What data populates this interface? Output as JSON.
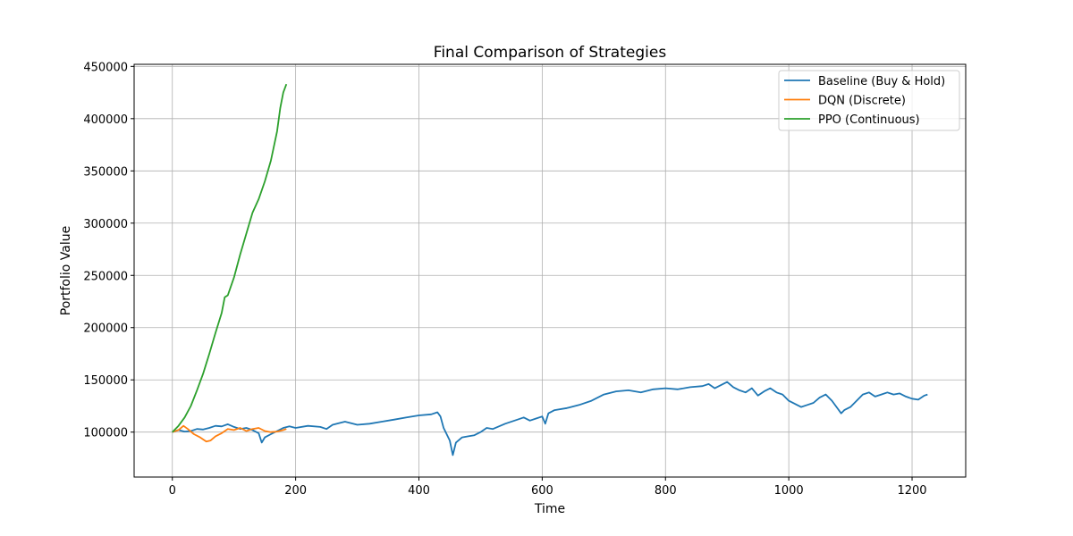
{
  "chart_data": {
    "type": "line",
    "title": "Final Comparison of Strategies",
    "xlabel": "Time",
    "ylabel": "Portfolio Value",
    "xlim": [
      -62,
      1287
    ],
    "ylim": [
      57000,
      452000
    ],
    "xticks": [
      0,
      200,
      400,
      600,
      800,
      1000,
      1200
    ],
    "yticks": [
      100000,
      150000,
      200000,
      250000,
      300000,
      350000,
      400000,
      450000
    ],
    "xtick_labels": [
      "0",
      "200",
      "400",
      "600",
      "800",
      "1000",
      "1200"
    ],
    "ytick_labels": [
      "100000",
      "150000",
      "200000",
      "250000",
      "300000",
      "350000",
      "400000",
      "450000"
    ],
    "grid": true,
    "legend_position": "top-right",
    "series": [
      {
        "name": "Baseline (Buy & Hold)",
        "color": "#1f77b4",
        "points": [
          [
            0,
            100000
          ],
          [
            10,
            102000
          ],
          [
            20,
            100500
          ],
          [
            30,
            101000
          ],
          [
            40,
            103000
          ],
          [
            50,
            102500
          ],
          [
            60,
            104000
          ],
          [
            70,
            106000
          ],
          [
            80,
            105500
          ],
          [
            90,
            107500
          ],
          [
            100,
            105000
          ],
          [
            110,
            103000
          ],
          [
            120,
            104000
          ],
          [
            130,
            102000
          ],
          [
            140,
            99000
          ],
          [
            145,
            90000
          ],
          [
            150,
            95000
          ],
          [
            160,
            98000
          ],
          [
            170,
            101000
          ],
          [
            180,
            104000
          ],
          [
            190,
            105500
          ],
          [
            200,
            104000
          ],
          [
            220,
            106000
          ],
          [
            240,
            105000
          ],
          [
            250,
            103000
          ],
          [
            260,
            107000
          ],
          [
            280,
            110000
          ],
          [
            300,
            107000
          ],
          [
            320,
            108000
          ],
          [
            340,
            110000
          ],
          [
            360,
            112000
          ],
          [
            380,
            114000
          ],
          [
            400,
            116000
          ],
          [
            420,
            117000
          ],
          [
            430,
            119000
          ],
          [
            435,
            115000
          ],
          [
            440,
            104000
          ],
          [
            450,
            92000
          ],
          [
            455,
            78000
          ],
          [
            460,
            90000
          ],
          [
            470,
            95000
          ],
          [
            480,
            96000
          ],
          [
            490,
            97000
          ],
          [
            500,
            100000
          ],
          [
            510,
            104000
          ],
          [
            520,
            103000
          ],
          [
            540,
            108000
          ],
          [
            560,
            112000
          ],
          [
            570,
            114000
          ],
          [
            580,
            111000
          ],
          [
            590,
            113000
          ],
          [
            600,
            115000
          ],
          [
            605,
            108000
          ],
          [
            610,
            118000
          ],
          [
            620,
            121000
          ],
          [
            640,
            123000
          ],
          [
            660,
            126000
          ],
          [
            680,
            130000
          ],
          [
            700,
            136000
          ],
          [
            720,
            139000
          ],
          [
            740,
            140000
          ],
          [
            760,
            138000
          ],
          [
            780,
            141000
          ],
          [
            800,
            142000
          ],
          [
            820,
            141000
          ],
          [
            840,
            143000
          ],
          [
            860,
            144000
          ],
          [
            870,
            146000
          ],
          [
            880,
            142000
          ],
          [
            890,
            145000
          ],
          [
            900,
            148000
          ],
          [
            910,
            143000
          ],
          [
            920,
            140000
          ],
          [
            930,
            138000
          ],
          [
            940,
            142000
          ],
          [
            950,
            135000
          ],
          [
            960,
            139000
          ],
          [
            970,
            142000
          ],
          [
            980,
            138000
          ],
          [
            990,
            136000
          ],
          [
            1000,
            130000
          ],
          [
            1010,
            127000
          ],
          [
            1020,
            124000
          ],
          [
            1030,
            126000
          ],
          [
            1040,
            128000
          ],
          [
            1050,
            133000
          ],
          [
            1060,
            136000
          ],
          [
            1070,
            130000
          ],
          [
            1080,
            122000
          ],
          [
            1085,
            118000
          ],
          [
            1090,
            121000
          ],
          [
            1100,
            124000
          ],
          [
            1110,
            130000
          ],
          [
            1120,
            136000
          ],
          [
            1130,
            138000
          ],
          [
            1140,
            134000
          ],
          [
            1150,
            136000
          ],
          [
            1160,
            138000
          ],
          [
            1170,
            136000
          ],
          [
            1180,
            137000
          ],
          [
            1190,
            134000
          ],
          [
            1200,
            132000
          ],
          [
            1210,
            131000
          ],
          [
            1220,
            135000
          ],
          [
            1225,
            136000
          ]
        ]
      },
      {
        "name": "DQN (Discrete)",
        "color": "#ff7f0e",
        "points": [
          [
            0,
            100000
          ],
          [
            10,
            102000
          ],
          [
            18,
            106000
          ],
          [
            25,
            103000
          ],
          [
            35,
            98000
          ],
          [
            45,
            95000
          ],
          [
            55,
            91000
          ],
          [
            62,
            92000
          ],
          [
            70,
            96000
          ],
          [
            80,
            99000
          ],
          [
            90,
            103000
          ],
          [
            100,
            102000
          ],
          [
            110,
            104000
          ],
          [
            120,
            101000
          ],
          [
            130,
            103000
          ],
          [
            140,
            104000
          ],
          [
            150,
            101000
          ],
          [
            160,
            100000
          ],
          [
            170,
            100500
          ],
          [
            180,
            102000
          ],
          [
            185,
            103000
          ]
        ]
      },
      {
        "name": "PPO (Continuous)",
        "color": "#2ca02c",
        "points": [
          [
            0,
            100000
          ],
          [
            10,
            106000
          ],
          [
            20,
            114000
          ],
          [
            30,
            125000
          ],
          [
            40,
            140000
          ],
          [
            50,
            156000
          ],
          [
            60,
            175000
          ],
          [
            70,
            195000
          ],
          [
            80,
            214000
          ],
          [
            85,
            229000
          ],
          [
            90,
            231000
          ],
          [
            100,
            248000
          ],
          [
            110,
            270000
          ],
          [
            120,
            290000
          ],
          [
            130,
            310000
          ],
          [
            140,
            323000
          ],
          [
            150,
            340000
          ],
          [
            160,
            360000
          ],
          [
            170,
            388000
          ],
          [
            175,
            410000
          ],
          [
            180,
            425000
          ],
          [
            185,
            433000
          ]
        ]
      }
    ]
  }
}
